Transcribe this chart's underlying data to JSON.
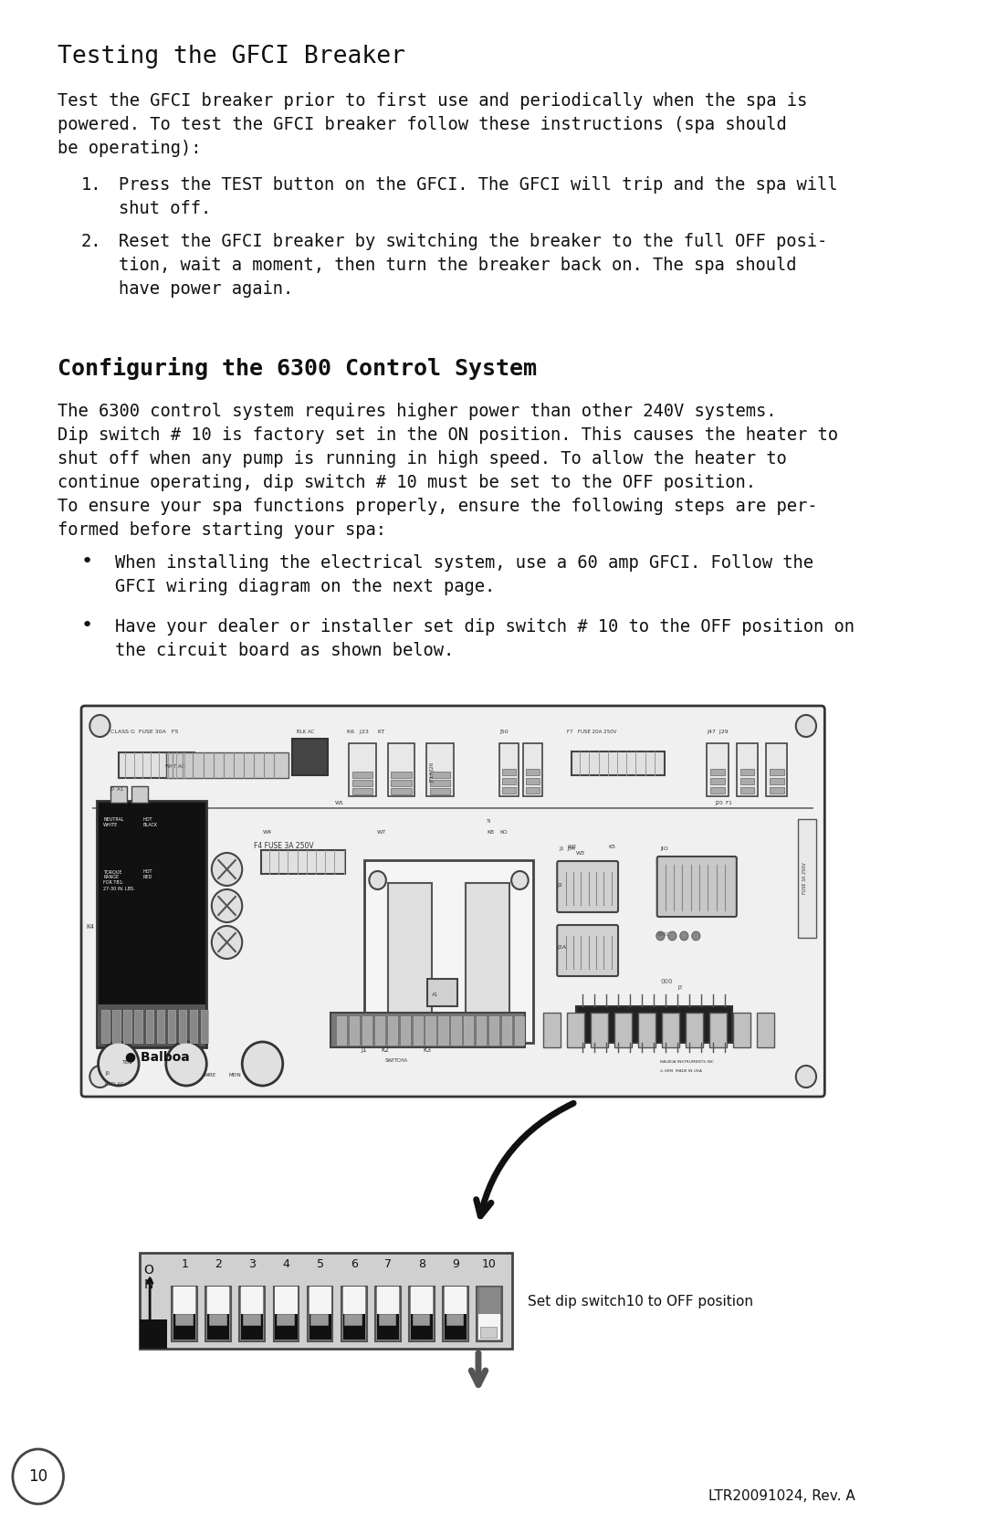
{
  "page_background": "#ffffff",
  "page_number": "10",
  "footer_text": "LTR20091024, Rev. A",
  "section1_title": "Testing the GFCI Breaker",
  "section1_body_lines": [
    "Test the GFCI breaker prior to first use and periodically when the spa is",
    "powered. To test the GFCI breaker follow these instructions (spa should",
    "be operating):"
  ],
  "section1_items": [
    [
      "Press the TEST button on the GFCI. The GFCI will trip and the spa will",
      "shut off."
    ],
    [
      "Reset the GFCI breaker by switching the breaker to the full OFF posi-",
      "tion, wait a moment, then turn the breaker back on. The spa should",
      "have power again."
    ]
  ],
  "section2_title": "Configuring the 6300 Control System",
  "section2_body_lines": [
    "The 6300 control system requires higher power than other 240V systems.",
    "Dip switch # 10 is factory set in the ON position. This causes the heater to",
    "shut off when any pump is running in high speed. To allow the heater to",
    "continue operating, dip switch # 10 must be set to the OFF position.",
    "To ensure your spa functions properly, ensure the following steps are per-",
    "formed before starting your spa:"
  ],
  "section2_bullets": [
    [
      "When installing the electrical system, use a 60 amp GFCI. Follow the",
      "GFCI wiring diagram on the next page."
    ],
    [
      "Have your dealer or installer set dip switch # 10 to the OFF position on",
      "the circuit board as shown below."
    ]
  ],
  "dip_label": "Set dip switch10 to OFF position",
  "font": "DejaVu Sans Mono",
  "body_fontsize": 13.5,
  "title1_fontsize": 19,
  "title2_fontsize": 18
}
